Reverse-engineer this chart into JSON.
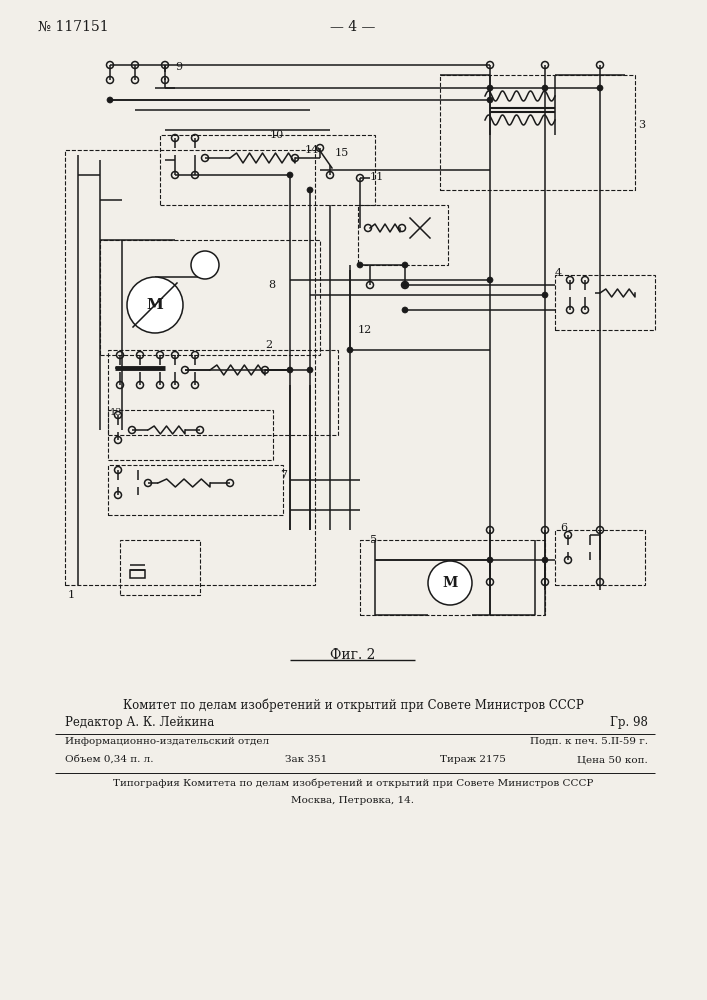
{
  "title_left": "№ 117151",
  "title_center": "— 4 —",
  "fig_label": "Фиг. 2",
  "bg_color": "#f2efe9",
  "line_color": "#1a1a1a",
  "text_color": "#1a1a1a",
  "footer_line1": "Комитет по делам изобретений и открытий при Совете Министров СССР",
  "footer_line2": "Редактор А. К. Лейкина",
  "footer_line2r": "Гр. 98",
  "footer_line3l": "Информационно-издательский отдел",
  "footer_line3r": "Подп. к печ. 5.II-59 г.",
  "footer_line4l1": "Объем 0,34 п. л.",
  "footer_line4l2": "Зак 351",
  "footer_line4c": "Тираж 2175",
  "footer_line4r": "Цена 50 коп.",
  "footer_line5": "Типография Комитета по делам изобретений и открытий при Совете Министров СССР",
  "footer_line6": "Москва, Петровка, 14."
}
